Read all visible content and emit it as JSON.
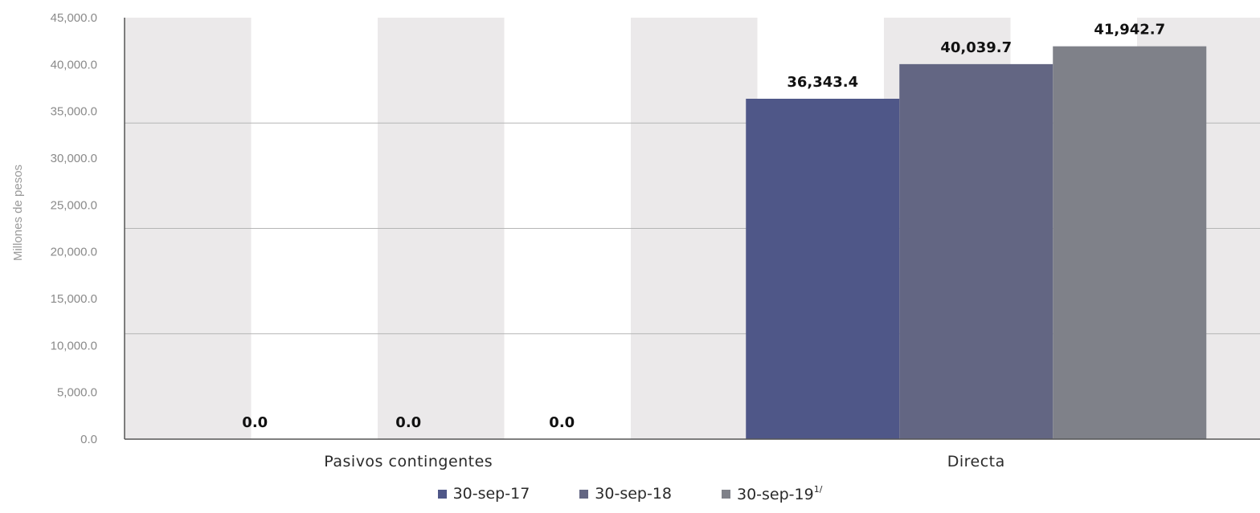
{
  "chart_data": {
    "type": "bar",
    "categories": [
      "Pasivos contingentes",
      "Directa"
    ],
    "series": [
      {
        "name": "30-sep-17",
        "footnote": "",
        "values": [
          0.0,
          36343.4
        ],
        "labels": [
          "0.0",
          "36,343.4"
        ],
        "color": "#4f5788"
      },
      {
        "name": "30-sep-18",
        "footnote": "",
        "values": [
          0.0,
          40039.7
        ],
        "labels": [
          "0.0",
          "40,039.7"
        ],
        "color": "#636683"
      },
      {
        "name": "30-sep-19",
        "footnote": "1/",
        "values": [
          0.0,
          41942.7
        ],
        "labels": [
          "0.0",
          "41,942.7"
        ],
        "color": "#7f8189"
      }
    ],
    "ylabel": "Millones de pesos",
    "ylim": [
      0,
      45000
    ],
    "yticks": [
      "0.0",
      "5,000.0",
      "10,000.0",
      "15,000.0",
      "20,000.0",
      "25,000.0",
      "30,000.0",
      "35,000.0",
      "40,000.0",
      "45,000.0"
    ],
    "legend_position": "bottom",
    "grid": true,
    "background_color": "#ebe9ea"
  }
}
